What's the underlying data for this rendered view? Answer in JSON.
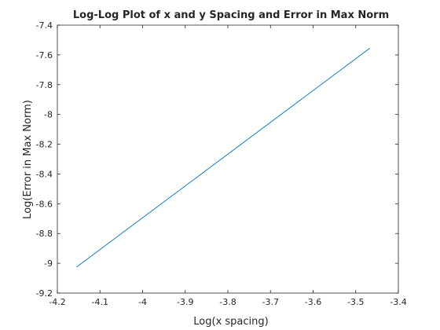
{
  "chart_data": {
    "type": "line",
    "title": "Log-Log Plot of x and y Spacing and Error in Max Norm",
    "xlabel": "Log(x spacing)",
    "ylabel": "Log(Error in Max Norm)",
    "xlim": [
      -4.2,
      -3.4
    ],
    "ylim": [
      -9.2,
      -7.4
    ],
    "xticks": [
      -4.2,
      -4.1,
      -4.0,
      -3.9,
      -3.8,
      -3.7,
      -3.6,
      -3.5,
      -3.4
    ],
    "yticks": [
      -9.2,
      -9.0,
      -8.8,
      -8.6,
      -8.4,
      -8.2,
      -8.0,
      -7.8,
      -7.6,
      -7.4
    ],
    "xtick_labels": [
      "-4.2",
      "-4.1",
      "-4",
      "-3.9",
      "-3.8",
      "-3.7",
      "-3.6",
      "-3.5",
      "-3.4"
    ],
    "ytick_labels": [
      "-9.2",
      "-9",
      "-8.8",
      "-8.6",
      "-8.4",
      "-8.2",
      "-8",
      "-7.8",
      "-7.6",
      "-7.4"
    ],
    "grid": false,
    "series": [
      {
        "x": [
          -4.155,
          -3.467
        ],
        "y": [
          -9.025,
          -7.555
        ],
        "color": "#0072BD"
      }
    ]
  }
}
